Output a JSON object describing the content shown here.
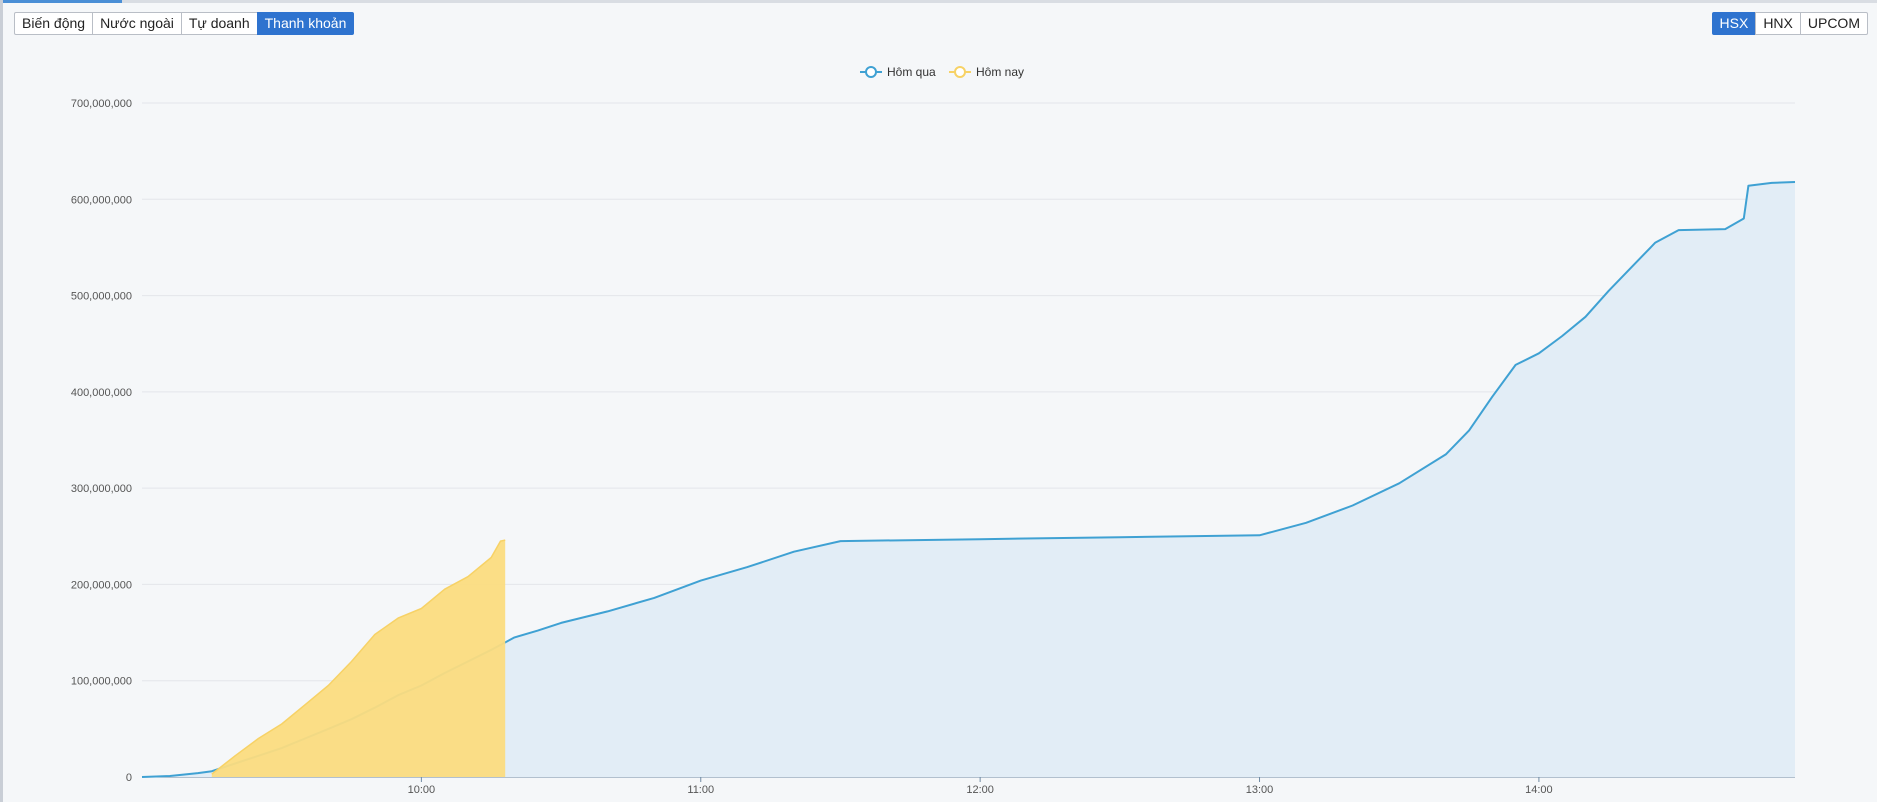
{
  "tabs": [
    {
      "label": "Biến động",
      "active": false
    },
    {
      "label": "Nước ngoài",
      "active": false
    },
    {
      "label": "Tự doanh",
      "active": false
    },
    {
      "label": "Thanh khoản",
      "active": true
    }
  ],
  "exchanges": [
    {
      "label": "HSX",
      "active": true
    },
    {
      "label": "HNX",
      "active": false
    },
    {
      "label": "UPCOM",
      "active": false
    }
  ],
  "colors": {
    "yesterday_line": "#3fa1d3",
    "yesterday_fill": "#e2edf6",
    "today_line": "#f7d266",
    "today_fill": "#fbdc80",
    "accent": "#2e73cf"
  },
  "chart_data": {
    "type": "area",
    "x_unit": "time (HH:MM)",
    "xlim": [
      "09:00",
      "14:55"
    ],
    "ylim": [
      0,
      700000000
    ],
    "yticks": [
      0,
      100000000,
      200000000,
      300000000,
      400000000,
      500000000,
      600000000,
      700000000
    ],
    "ytick_labels": [
      "0",
      "100,000,000",
      "200,000,000",
      "300,000,000",
      "400,000,000",
      "500,000,000",
      "600,000,000",
      "700,000,000"
    ],
    "xticks": [
      "10:00",
      "11:00",
      "12:00",
      "13:00",
      "14:00"
    ],
    "grid": true,
    "legend_position": "top-center",
    "series": [
      {
        "name": "Hôm qua",
        "points": [
          [
            "09:00",
            0
          ],
          [
            "09:06",
            1000000
          ],
          [
            "09:12",
            4000000
          ],
          [
            "09:15",
            6000000
          ],
          [
            "09:20",
            14000000
          ],
          [
            "09:25",
            22000000
          ],
          [
            "09:30",
            30000000
          ],
          [
            "09:35",
            40000000
          ],
          [
            "09:40",
            50000000
          ],
          [
            "09:45",
            60000000
          ],
          [
            "09:50",
            72000000
          ],
          [
            "09:55",
            85000000
          ],
          [
            "10:00",
            95000000
          ],
          [
            "10:05",
            108000000
          ],
          [
            "10:10",
            120000000
          ],
          [
            "10:15",
            132000000
          ],
          [
            "10:20",
            145000000
          ],
          [
            "10:25",
            152000000
          ],
          [
            "10:30",
            160000000
          ],
          [
            "10:40",
            172000000
          ],
          [
            "10:50",
            186000000
          ],
          [
            "11:00",
            204000000
          ],
          [
            "11:10",
            218000000
          ],
          [
            "11:20",
            234000000
          ],
          [
            "11:30",
            245000000
          ],
          [
            "12:00",
            247000000
          ],
          [
            "12:30",
            249000000
          ],
          [
            "13:00",
            251000000
          ],
          [
            "13:10",
            264000000
          ],
          [
            "13:20",
            282000000
          ],
          [
            "13:30",
            305000000
          ],
          [
            "13:40",
            335000000
          ],
          [
            "13:45",
            360000000
          ],
          [
            "13:50",
            395000000
          ],
          [
            "13:55",
            428000000
          ],
          [
            "14:00",
            440000000
          ],
          [
            "14:05",
            458000000
          ],
          [
            "14:10",
            478000000
          ],
          [
            "14:15",
            505000000
          ],
          [
            "14:20",
            530000000
          ],
          [
            "14:25",
            555000000
          ],
          [
            "14:30",
            568000000
          ],
          [
            "14:40",
            569000000
          ],
          [
            "14:44",
            580000000
          ],
          [
            "14:45",
            614000000
          ],
          [
            "14:50",
            617000000
          ],
          [
            "14:55",
            618000000
          ]
        ]
      },
      {
        "name": "Hôm nay",
        "points": [
          [
            "09:15",
            3000000
          ],
          [
            "09:20",
            22000000
          ],
          [
            "09:25",
            40000000
          ],
          [
            "09:30",
            55000000
          ],
          [
            "09:35",
            75000000
          ],
          [
            "09:40",
            95000000
          ],
          [
            "09:45",
            120000000
          ],
          [
            "09:50",
            148000000
          ],
          [
            "09:55",
            165000000
          ],
          [
            "10:00",
            175000000
          ],
          [
            "10:05",
            195000000
          ],
          [
            "10:10",
            208000000
          ],
          [
            "10:15",
            228000000
          ],
          [
            "10:17",
            245000000
          ],
          [
            "10:18",
            246000000
          ]
        ]
      }
    ]
  }
}
